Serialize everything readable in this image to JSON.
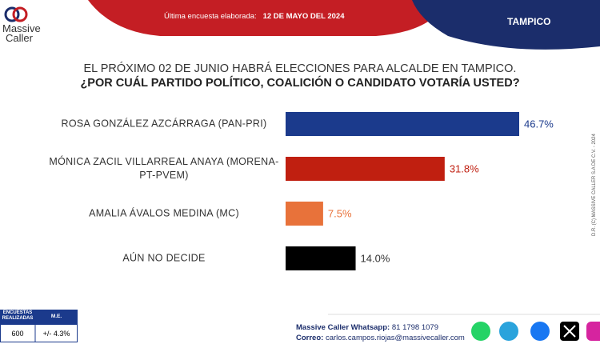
{
  "header": {
    "survey_label": "Última encuesta elaborada:",
    "survey_date": "12 DE MAYO DEL 2024",
    "city": "TAMPICO",
    "logo_line1": "Massive",
    "logo_line2": "Caller"
  },
  "chart_data": {
    "type": "bar",
    "orientation": "horizontal",
    "title": "EL PRÓXIMO 02 DE JUNIO HABRÁ ELECCIONES PARA ALCALDE EN TAMPICO.",
    "subtitle": "¿POR CUÁL PARTIDO POLÍTICO, COALICIÓN O CANDIDATO VOTARÍA USTED?",
    "categories": [
      "ROSA GONZÁLEZ AZCÁRRAGA (PAN-PRI)",
      "MÓNICA ZACIL VILLARREAL ANAYA  (MORENA-PT-PVEM)",
      "AMALIA ÁVALOS MEDINA (MC)",
      "AÚN NO DECIDE"
    ],
    "values": [
      46.7,
      31.8,
      7.5,
      14.0
    ],
    "value_labels": [
      "46.7%",
      "31.8%",
      "7.5%",
      "14.0%"
    ],
    "colors": [
      "#1b3a8c",
      "#c01f10",
      "#e8723a",
      "#000000"
    ]
  },
  "copyright": "D.R. (C) MASSIVE CALLER S.A DE C.V. - 2024",
  "survey_table": {
    "headers": [
      "ENCUESTAS REALIZADAS",
      "M.E."
    ],
    "cells": [
      "600",
      "+/- 4.3%"
    ]
  },
  "footer": {
    "whatsapp_label": "Massive Caller Whatsapp:",
    "whatsapp": "81 1798 1079",
    "email_label": "Correo:",
    "email": "carlos.campos.riojas@massivecaller.com"
  }
}
